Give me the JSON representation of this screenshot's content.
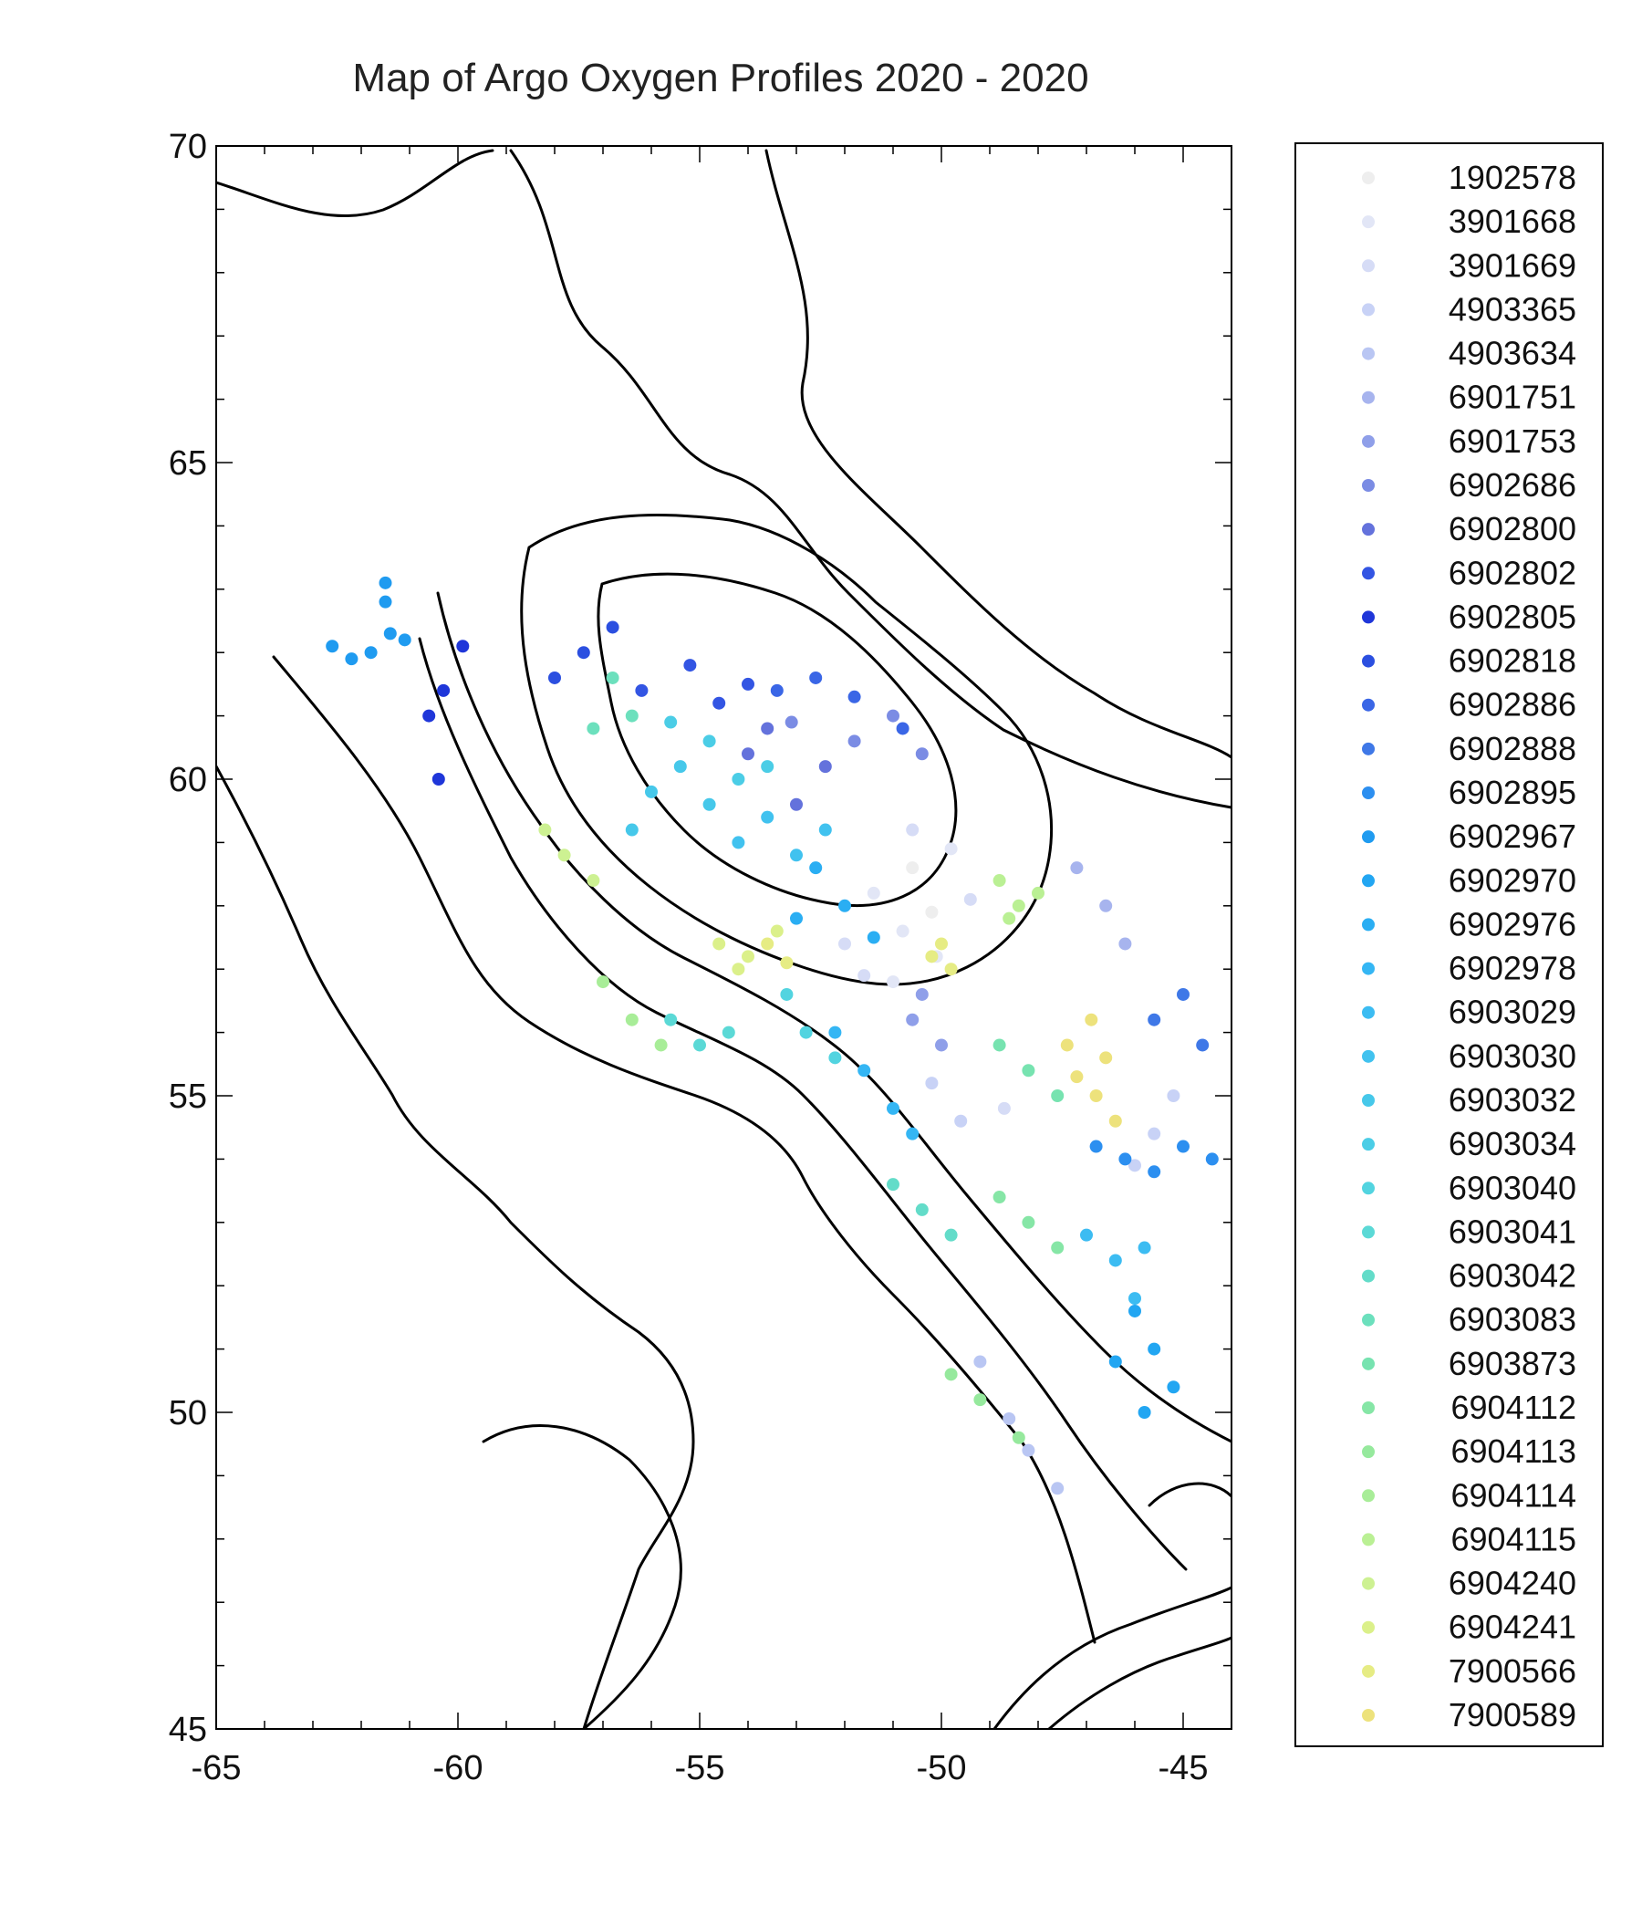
{
  "chart_data": {
    "type": "scatter",
    "title": "Map of Argo Oxygen Profiles 2020 - 2020",
    "xlim": [
      -65,
      -44
    ],
    "ylim": [
      45,
      70
    ],
    "xticks": [
      -65,
      -60,
      -55,
      -50,
      -45
    ],
    "yticks": [
      45,
      50,
      55,
      60,
      65,
      70
    ],
    "x_tick_labels": [
      "-65",
      "-60",
      "-55",
      "-50",
      "-45"
    ],
    "y_tick_labels": [
      "45",
      "50",
      "55",
      "60",
      "65",
      "70"
    ],
    "legend_position": "right",
    "series": [
      {
        "name": "1902578",
        "color": "#eeeeee",
        "points": [
          [
            -50.6,
            58.6
          ],
          [
            -50.2,
            57.9
          ]
        ]
      },
      {
        "name": "3901668",
        "color": "#e2e6f6",
        "points": [
          [
            -51.4,
            58.2
          ],
          [
            -50.8,
            57.6
          ],
          [
            -50.1,
            57.2
          ],
          [
            -51.0,
            56.8
          ],
          [
            -49.8,
            58.9
          ]
        ]
      },
      {
        "name": "3901669",
        "color": "#d6dcf6",
        "points": [
          [
            -52.0,
            57.4
          ],
          [
            -51.6,
            56.9
          ],
          [
            -50.6,
            59.2
          ],
          [
            -49.4,
            58.1
          ],
          [
            -48.7,
            54.8
          ]
        ]
      },
      {
        "name": "4903365",
        "color": "#c8d2f6",
        "points": [
          [
            -50.2,
            55.2
          ],
          [
            -49.6,
            54.6
          ],
          [
            -45.2,
            55.0
          ],
          [
            -45.6,
            54.4
          ],
          [
            -46.0,
            53.9
          ]
        ]
      },
      {
        "name": "4903634",
        "color": "#b9c6f3",
        "points": [
          [
            -49.2,
            50.8
          ],
          [
            -48.6,
            49.9
          ],
          [
            -48.2,
            49.4
          ],
          [
            -47.6,
            48.8
          ]
        ]
      },
      {
        "name": "6901751",
        "color": "#a7b4ee",
        "points": [
          [
            -47.2,
            58.6
          ],
          [
            -46.6,
            58.0
          ],
          [
            -46.2,
            57.4
          ]
        ]
      },
      {
        "name": "6901753",
        "color": "#8f9fe9",
        "points": [
          [
            -50.6,
            56.2
          ],
          [
            -50.0,
            55.8
          ],
          [
            -50.4,
            56.6
          ]
        ]
      },
      {
        "name": "6902686",
        "color": "#7b8ce4",
        "points": [
          [
            -51.8,
            60.6
          ],
          [
            -51.0,
            61.0
          ],
          [
            -50.4,
            60.4
          ],
          [
            -53.1,
            60.9
          ]
        ]
      },
      {
        "name": "6902800",
        "color": "#6472dc",
        "points": [
          [
            -54.0,
            60.4
          ],
          [
            -53.6,
            60.8
          ],
          [
            -53.0,
            59.6
          ],
          [
            -52.4,
            60.2
          ]
        ]
      },
      {
        "name": "6902802",
        "color": "#3355e3",
        "points": [
          [
            -55.2,
            61.8
          ],
          [
            -54.6,
            61.2
          ],
          [
            -54.0,
            61.5
          ],
          [
            -56.2,
            61.4
          ]
        ]
      },
      {
        "name": "6902805",
        "color": "#1f36d9",
        "points": [
          [
            -59.9,
            62.1
          ],
          [
            -60.3,
            61.4
          ],
          [
            -60.6,
            61.0
          ],
          [
            -60.4,
            60.0
          ]
        ]
      },
      {
        "name": "6902818",
        "color": "#2b4fe0",
        "points": [
          [
            -57.4,
            62.0
          ],
          [
            -56.8,
            62.4
          ],
          [
            -58.0,
            61.6
          ]
        ]
      },
      {
        "name": "6902886",
        "color": "#3a66e6",
        "points": [
          [
            -53.4,
            61.4
          ],
          [
            -52.6,
            61.6
          ],
          [
            -51.8,
            61.3
          ],
          [
            -50.8,
            60.8
          ]
        ]
      },
      {
        "name": "6902888",
        "color": "#3f78e7",
        "points": [
          [
            -45.6,
            56.2
          ],
          [
            -45.0,
            56.6
          ],
          [
            -44.6,
            55.8
          ]
        ]
      },
      {
        "name": "6902895",
        "color": "#2c8ff0",
        "points": [
          [
            -46.8,
            54.2
          ],
          [
            -46.2,
            54.0
          ],
          [
            -45.6,
            53.8
          ],
          [
            -45.0,
            54.2
          ],
          [
            -44.4,
            54.0
          ]
        ]
      },
      {
        "name": "6902967",
        "color": "#1f9bf0",
        "points": [
          [
            -62.6,
            62.1
          ],
          [
            -62.2,
            61.9
          ],
          [
            -61.8,
            62.0
          ],
          [
            -61.5,
            62.8
          ],
          [
            -61.4,
            62.3
          ],
          [
            -61.1,
            62.2
          ],
          [
            -61.5,
            63.1
          ]
        ]
      },
      {
        "name": "6902970",
        "color": "#22a6f2",
        "points": [
          [
            -46.0,
            51.6
          ],
          [
            -45.6,
            51.0
          ],
          [
            -45.2,
            50.4
          ],
          [
            -45.8,
            50.0
          ],
          [
            -46.4,
            50.8
          ]
        ]
      },
      {
        "name": "6902976",
        "color": "#2aaef3",
        "points": [
          [
            -52.6,
            58.6
          ],
          [
            -52.0,
            58.0
          ],
          [
            -51.4,
            57.5
          ],
          [
            -53.0,
            57.8
          ]
        ]
      },
      {
        "name": "6902978",
        "color": "#34b6f4",
        "points": [
          [
            -52.2,
            56.0
          ],
          [
            -51.6,
            55.4
          ],
          [
            -51.0,
            54.8
          ],
          [
            -50.6,
            54.4
          ]
        ]
      },
      {
        "name": "6903029",
        "color": "#3cbcf2",
        "points": [
          [
            -47.0,
            52.8
          ],
          [
            -46.4,
            52.4
          ],
          [
            -45.8,
            52.6
          ],
          [
            -46.0,
            51.8
          ]
        ]
      },
      {
        "name": "6903030",
        "color": "#41c2ef",
        "points": [
          [
            -53.6,
            59.4
          ],
          [
            -53.0,
            58.8
          ],
          [
            -52.4,
            59.2
          ],
          [
            -54.2,
            59.0
          ]
        ]
      },
      {
        "name": "6903032",
        "color": "#46c8ea",
        "points": [
          [
            -56.0,
            59.8
          ],
          [
            -55.4,
            60.2
          ],
          [
            -54.8,
            59.6
          ],
          [
            -56.4,
            59.2
          ]
        ]
      },
      {
        "name": "6903034",
        "color": "#4bcde6",
        "points": [
          [
            -54.8,
            60.6
          ],
          [
            -54.2,
            60.0
          ],
          [
            -53.6,
            60.2
          ],
          [
            -55.6,
            60.9
          ]
        ]
      },
      {
        "name": "6903040",
        "color": "#52d4e0",
        "points": [
          [
            -53.2,
            56.6
          ],
          [
            -52.8,
            56.0
          ],
          [
            -52.2,
            55.6
          ]
        ]
      },
      {
        "name": "6903041",
        "color": "#5bd9d6",
        "points": [
          [
            -55.6,
            56.2
          ],
          [
            -55.0,
            55.8
          ],
          [
            -54.4,
            56.0
          ]
        ]
      },
      {
        "name": "6903042",
        "color": "#63dcc9",
        "points": [
          [
            -51.0,
            53.6
          ],
          [
            -50.4,
            53.2
          ],
          [
            -49.8,
            52.8
          ]
        ]
      },
      {
        "name": "6903083",
        "color": "#6ce0bd",
        "points": [
          [
            -56.8,
            61.6
          ],
          [
            -57.2,
            60.8
          ],
          [
            -56.4,
            61.0
          ]
        ]
      },
      {
        "name": "6903873",
        "color": "#77e3b0",
        "points": [
          [
            -48.8,
            55.8
          ],
          [
            -48.2,
            55.4
          ],
          [
            -47.6,
            55.0
          ]
        ]
      },
      {
        "name": "6904112",
        "color": "#86e6a6",
        "points": [
          [
            -48.8,
            53.4
          ],
          [
            -48.2,
            53.0
          ],
          [
            -47.6,
            52.6
          ]
        ]
      },
      {
        "name": "6904113",
        "color": "#96e99d",
        "points": [
          [
            -49.8,
            50.6
          ],
          [
            -49.2,
            50.2
          ],
          [
            -48.4,
            49.6
          ]
        ]
      },
      {
        "name": "6904114",
        "color": "#a8ed98",
        "points": [
          [
            -57.0,
            56.8
          ],
          [
            -56.4,
            56.2
          ],
          [
            -55.8,
            55.8
          ]
        ]
      },
      {
        "name": "6904115",
        "color": "#baf094",
        "points": [
          [
            -48.8,
            58.4
          ],
          [
            -48.4,
            58.0
          ],
          [
            -48.0,
            58.2
          ],
          [
            -48.6,
            57.8
          ]
        ]
      },
      {
        "name": "6904240",
        "color": "#cdf192",
        "points": [
          [
            -58.2,
            59.2
          ],
          [
            -57.8,
            58.8
          ],
          [
            -57.2,
            58.4
          ]
        ]
      },
      {
        "name": "6904241",
        "color": "#dbf08a",
        "points": [
          [
            -54.6,
            57.4
          ],
          [
            -54.0,
            57.2
          ],
          [
            -53.4,
            57.6
          ],
          [
            -54.2,
            57.0
          ]
        ]
      },
      {
        "name": "7900566",
        "color": "#e6ec84",
        "points": [
          [
            -53.6,
            57.4
          ],
          [
            -53.2,
            57.1
          ],
          [
            -50.2,
            57.2
          ],
          [
            -49.8,
            57.0
          ],
          [
            -50.0,
            57.4
          ]
        ]
      },
      {
        "name": "7900589",
        "color": "#ede27c",
        "points": [
          [
            -47.4,
            55.8
          ],
          [
            -46.9,
            56.2
          ],
          [
            -46.6,
            55.6
          ],
          [
            -46.8,
            55.0
          ],
          [
            -46.4,
            54.6
          ],
          [
            -47.2,
            55.3
          ]
        ]
      }
    ]
  }
}
